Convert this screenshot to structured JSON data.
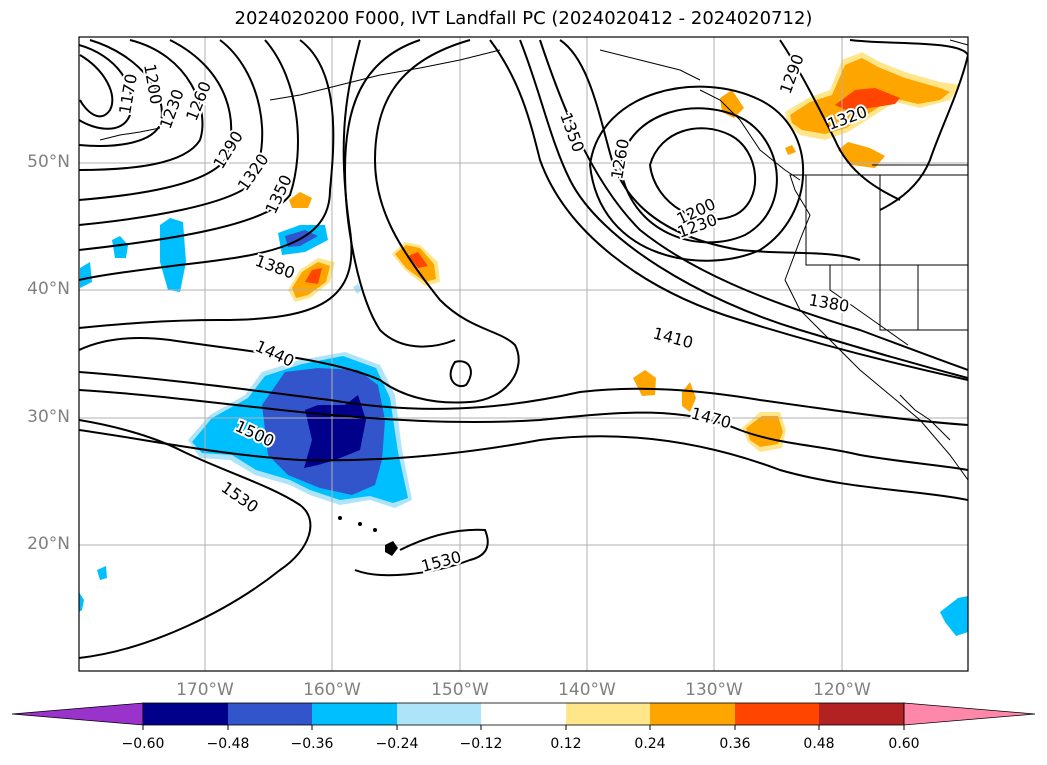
{
  "title": "2024020200 F000, IVT Landfall PC (2024020412 - 2024020712)",
  "lat_labels": [
    "50°N",
    "40°N",
    "30°N",
    "20°N"
  ],
  "lon_labels": [
    "170°W",
    "160°W",
    "150°W",
    "140°W",
    "130°W",
    "120°W"
  ],
  "contour_labels": [
    "1170",
    "1200",
    "1230",
    "1260",
    "1290",
    "1320",
    "1350",
    "1380",
    "1440",
    "1500",
    "1530",
    "1350",
    "1260",
    "1200",
    "1230",
    "1290",
    "1320",
    "1380",
    "1410",
    "1470",
    "1530"
  ],
  "colorbar": {
    "tick_labels": [
      "−0.60",
      "−0.48",
      "−0.36",
      "−0.24",
      "−0.12",
      "0.12",
      "0.24",
      "0.36",
      "0.48",
      "0.60"
    ],
    "colors": [
      "#9933cc",
      "#00008b",
      "#3355cc",
      "#00bfff",
      "#aee4fa",
      "#ffffff",
      "#ffe68a",
      "#ffa500",
      "#ff4500",
      "#b22222",
      "#ff88aa"
    ]
  }
}
